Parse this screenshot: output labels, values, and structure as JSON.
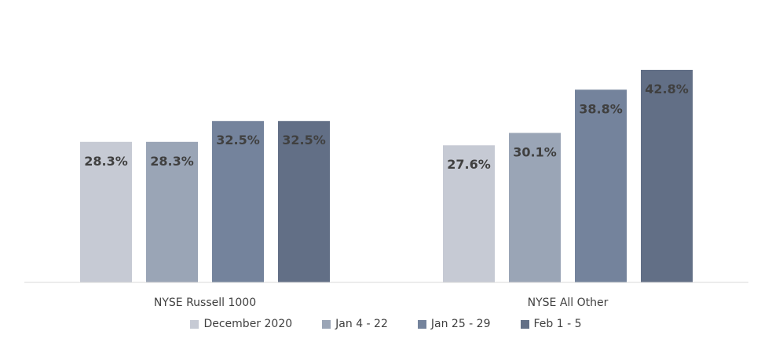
{
  "chart_data": {
    "type": "bar",
    "categories": [
      "NYSE Russell 1000",
      "NYSE All Other"
    ],
    "series": [
      {
        "name": "December 2020",
        "values": [
          28.3,
          27.6
        ],
        "labels": [
          "28.3%",
          "27.6%"
        ],
        "color": "#c6cad4"
      },
      {
        "name": "Jan 4 - 22",
        "values": [
          28.3,
          30.1
        ],
        "labels": [
          "28.3%",
          "30.1%"
        ],
        "color": "#9aa5b6"
      },
      {
        "name": "Jan 25 - 29",
        "values": [
          32.5,
          38.8
        ],
        "labels": [
          "32.5%",
          "38.8%"
        ],
        "color": "#74839c"
      },
      {
        "name": "Feb 1 - 5",
        "values": [
          32.5,
          42.8
        ],
        "labels": [
          "32.5%",
          "42.8%"
        ],
        "color": "#626f86"
      }
    ],
    "ylim": [
      0,
      42.8
    ],
    "grid": false,
    "legend_position": "bottom",
    "axis_color": "#d9d9d9"
  }
}
